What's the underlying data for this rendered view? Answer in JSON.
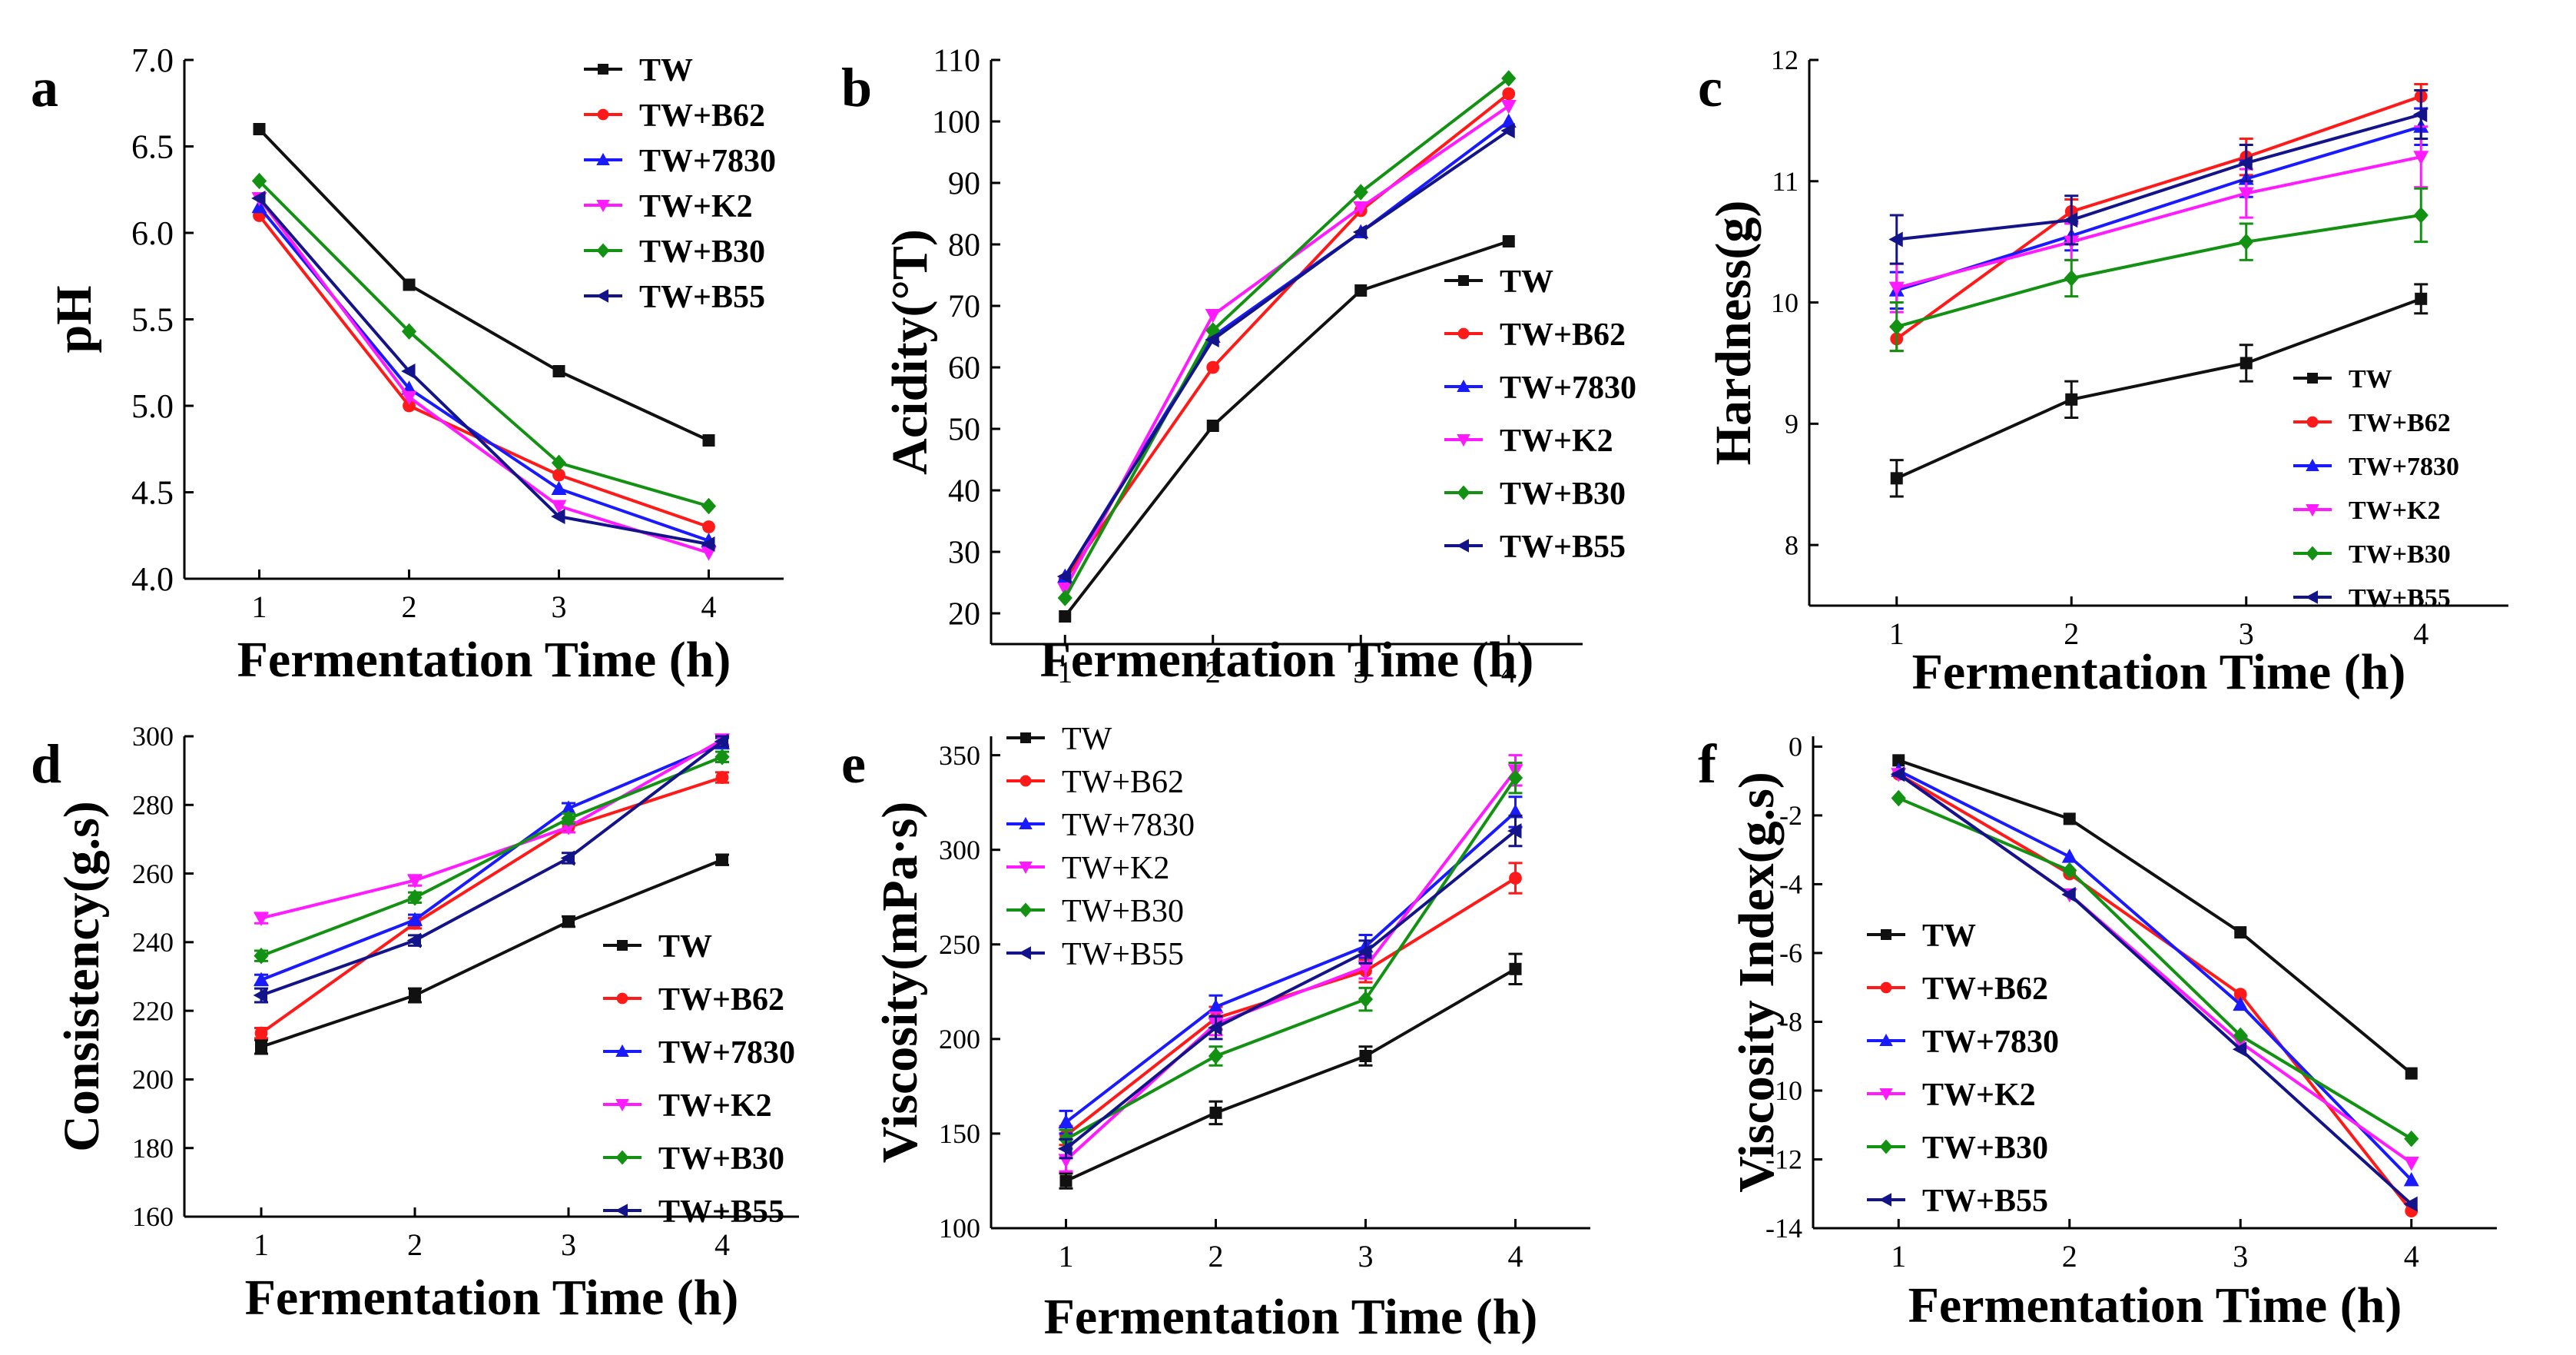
{
  "colors": {
    "TW": "#111111",
    "TW+B62": "#ff1a1a",
    "TW+7830": "#1a1aff",
    "TW+K2": "#ff1aff",
    "TW+B30": "#129112",
    "TW+B55": "#14148a"
  },
  "markers": {
    "TW": "square",
    "TW+B62": "circle",
    "TW+7830": "triangle-up",
    "TW+K2": "triangle-down",
    "TW+B30": "diamond",
    "TW+B55": "triangle-left"
  },
  "chart_data": [
    {
      "id": "a",
      "letter": "a",
      "type": "line",
      "title": "",
      "xlabel": "Fermentation Time (h)",
      "ylabel": "pH",
      "x": [
        1,
        2,
        3,
        4
      ],
      "xlim": [
        0.5,
        4.5
      ],
      "ylim": [
        4.0,
        7.0
      ],
      "yticks": [
        "4.0",
        "4.5",
        "5.0",
        "5.5",
        "6.0",
        "6.5",
        "7.0"
      ],
      "xticks": [
        "1",
        "2",
        "3",
        "4"
      ],
      "grid": false,
      "legend": "top-right",
      "series": [
        {
          "name": "TW",
          "values": [
            6.6,
            5.7,
            5.2,
            4.8
          ]
        },
        {
          "name": "TW+B62",
          "values": [
            6.1,
            5.0,
            4.6,
            4.3
          ]
        },
        {
          "name": "TW+7830",
          "values": [
            6.15,
            5.1,
            4.52,
            4.22
          ]
        },
        {
          "name": "TW+K2",
          "values": [
            6.2,
            5.05,
            4.42,
            4.15
          ]
        },
        {
          "name": "TW+B30",
          "values": [
            6.3,
            5.43,
            4.67,
            4.42
          ]
        },
        {
          "name": "TW+B55",
          "values": [
            6.2,
            5.2,
            4.36,
            4.2
          ]
        }
      ]
    },
    {
      "id": "b",
      "letter": "b",
      "type": "line",
      "title": "",
      "xlabel": "Fermentation Time (h)",
      "ylabel": "Acidity(°T)",
      "x": [
        1,
        2,
        3,
        4
      ],
      "xlim": [
        0.5,
        4.5
      ],
      "ylim": [
        15,
        110
      ],
      "yticks": [
        "20",
        "30",
        "40",
        "50",
        "60",
        "70",
        "80",
        "90",
        "100",
        "110"
      ],
      "xticks": [
        "1",
        "2",
        "3",
        "4"
      ],
      "grid": false,
      "legend": "bottom-right",
      "series": [
        {
          "name": "TW",
          "values": [
            19.5,
            50.5,
            72.5,
            80.5
          ]
        },
        {
          "name": "TW+B62",
          "values": [
            25.5,
            60,
            85.5,
            104.5
          ]
        },
        {
          "name": "TW+7830",
          "values": [
            26,
            65,
            82,
            100
          ]
        },
        {
          "name": "TW+K2",
          "values": [
            24,
            68.5,
            86,
            102.5
          ]
        },
        {
          "name": "TW+B30",
          "values": [
            22.5,
            66,
            88.5,
            107
          ]
        },
        {
          "name": "TW+B55",
          "values": [
            26,
            64.5,
            82,
            98.5
          ]
        }
      ]
    },
    {
      "id": "c",
      "letter": "c",
      "type": "line",
      "title": "",
      "xlabel": "Fermentation Time (h)",
      "ylabel": "Hardness(g)",
      "x": [
        1,
        2,
        3,
        4
      ],
      "xlim": [
        0.5,
        4.5
      ],
      "ylim": [
        7.5,
        12
      ],
      "yticks": [
        "8",
        "9",
        "10",
        "11",
        "12"
      ],
      "xticks": [
        "1",
        "2",
        "3",
        "4"
      ],
      "grid": false,
      "legend": "bottom-right",
      "series": [
        {
          "name": "TW",
          "values": [
            8.55,
            9.2,
            9.5,
            10.03
          ],
          "errors": [
            0.15,
            0.15,
            0.15,
            0.12
          ]
        },
        {
          "name": "TW+B62",
          "values": [
            9.7,
            10.75,
            11.2,
            11.7
          ],
          "errors": [
            0.1,
            0.1,
            0.15,
            0.1
          ]
        },
        {
          "name": "TW+7830",
          "values": [
            10.1,
            10.55,
            11.02,
            11.45
          ],
          "errors": [
            0.15,
            0.12,
            0.15,
            0.15
          ]
        },
        {
          "name": "TW+K2",
          "values": [
            10.12,
            10.5,
            10.9,
            11.2
          ],
          "errors": [
            0.2,
            0.15,
            0.2,
            0.25
          ]
        },
        {
          "name": "TW+B30",
          "values": [
            9.8,
            10.2,
            10.5,
            10.72
          ],
          "errors": [
            0.2,
            0.15,
            0.15,
            0.22
          ]
        },
        {
          "name": "TW+B55",
          "values": [
            10.52,
            10.68,
            11.15,
            11.55
          ],
          "errors": [
            0.2,
            0.2,
            0.15,
            0.2
          ]
        }
      ]
    },
    {
      "id": "d",
      "letter": "d",
      "type": "line",
      "title": "",
      "xlabel": "Fermentation Time (h)",
      "ylabel": "Consistency(g.s)",
      "x": [
        1,
        2,
        3,
        4
      ],
      "xlim": [
        0.5,
        4.5
      ],
      "ylim": [
        160,
        300
      ],
      "yticks": [
        "160",
        "180",
        "200",
        "220",
        "240",
        "260",
        "280",
        "300"
      ],
      "xticks": [
        "1",
        "2",
        "3",
        "4"
      ],
      "grid": false,
      "legend": "bottom-right",
      "series": [
        {
          "name": "TW",
          "values": [
            209.5,
            224.5,
            246,
            264
          ],
          "errors": [
            2,
            2,
            1.5,
            1.5
          ]
        },
        {
          "name": "TW+B62",
          "values": [
            213.5,
            245.5,
            273.5,
            288
          ],
          "errors": [
            1.5,
            1.5,
            1.5,
            1.5
          ]
        },
        {
          "name": "TW+7830",
          "values": [
            229,
            246.5,
            279,
            298
          ],
          "errors": [
            1.5,
            1.5,
            1.5,
            1.5
          ]
        },
        {
          "name": "TW+K2",
          "values": [
            247,
            258,
            273.5,
            299
          ],
          "errors": [
            1.5,
            1.5,
            1.5,
            1.5
          ]
        },
        {
          "name": "TW+B30",
          "values": [
            236,
            253,
            276,
            294
          ],
          "errors": [
            1.5,
            1.5,
            1.5,
            1.5
          ]
        },
        {
          "name": "TW+B55",
          "values": [
            224.5,
            240.5,
            264.5,
            298.5
          ],
          "errors": [
            2,
            1.5,
            1.5,
            1.5
          ]
        }
      ]
    },
    {
      "id": "e",
      "letter": "e",
      "type": "line",
      "title": "",
      "xlabel": "Fermentation Time (h)",
      "ylabel": "Viscosity(mPa·s)",
      "x": [
        1,
        2,
        3,
        4
      ],
      "xlim": [
        0.5,
        4.5
      ],
      "ylim": [
        100,
        360
      ],
      "yticks": [
        "100",
        "150",
        "200",
        "250",
        "300",
        "350"
      ],
      "xticks": [
        "1",
        "2",
        "3",
        "4"
      ],
      "grid": false,
      "legend": "top-left",
      "series": [
        {
          "name": "TW",
          "values": [
            125,
            161,
            191,
            237
          ],
          "errors": [
            4,
            6,
            5,
            8
          ]
        },
        {
          "name": "TW+B62",
          "values": [
            149,
            211,
            236,
            285
          ],
          "errors": [
            5,
            6,
            6,
            8
          ]
        },
        {
          "name": "TW+7830",
          "values": [
            156,
            217,
            249,
            320
          ],
          "errors": [
            6,
            6,
            6,
            8
          ]
        },
        {
          "name": "TW+K2",
          "values": [
            136,
            208,
            238,
            342
          ],
          "errors": [
            6,
            6,
            6,
            8
          ]
        },
        {
          "name": "TW+B30",
          "values": [
            147,
            191,
            221,
            338
          ],
          "errors": [
            5,
            5,
            6,
            8
          ]
        },
        {
          "name": "TW+B55",
          "values": [
            142,
            206,
            246,
            310
          ],
          "errors": [
            5,
            6,
            6,
            8
          ]
        }
      ]
    },
    {
      "id": "f",
      "letter": "f",
      "type": "line",
      "title": "",
      "xlabel": "Fermentation Time (h)",
      "ylabel": "Viscosity Index(g.s)",
      "x": [
        1,
        2,
        3,
        4
      ],
      "xlim": [
        0.5,
        4.5
      ],
      "ylim": [
        -14,
        0.3
      ],
      "yticks": [
        "-14",
        "-12",
        "-10",
        "-8",
        "-6",
        "-4",
        "-2",
        "0"
      ],
      "xticks": [
        "1",
        "2",
        "3",
        "4"
      ],
      "grid": false,
      "legend": "bottom-left",
      "series": [
        {
          "name": "TW",
          "values": [
            -0.4,
            -2.1,
            -5.4,
            -9.5
          ]
        },
        {
          "name": "TW+B62",
          "values": [
            -0.8,
            -3.7,
            -7.2,
            -13.5
          ]
        },
        {
          "name": "TW+7830",
          "values": [
            -0.7,
            -3.2,
            -7.5,
            -12.6
          ]
        },
        {
          "name": "TW+K2",
          "values": [
            -0.8,
            -4.3,
            -8.6,
            -12.1
          ]
        },
        {
          "name": "TW+B30",
          "values": [
            -1.5,
            -3.6,
            -8.4,
            -11.4
          ]
        },
        {
          "name": "TW+B55",
          "values": [
            -0.8,
            -4.3,
            -8.8,
            -13.3
          ]
        }
      ]
    }
  ]
}
